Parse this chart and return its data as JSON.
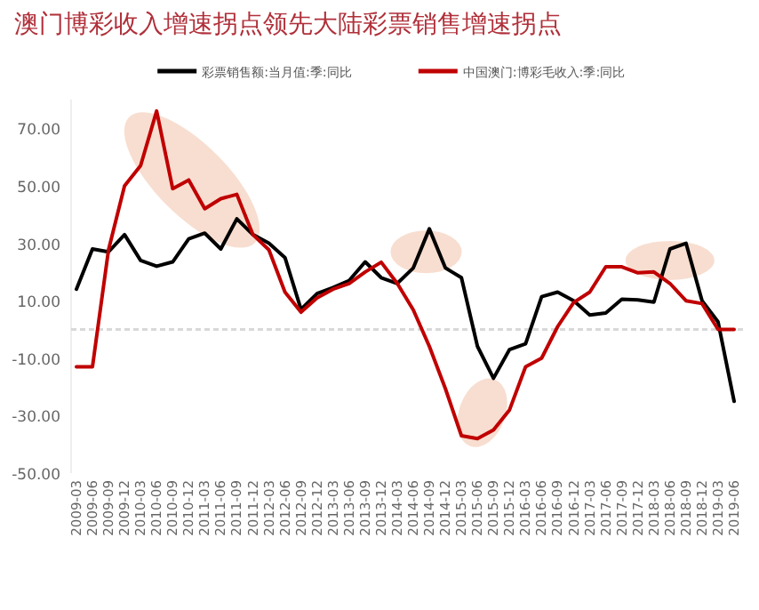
{
  "chart_data": {
    "type": "line",
    "title": "澳门博彩收入增速拐点领先大陆彩票销售增速拐点",
    "categories": [
      "2009-03",
      "2009-06",
      "2009-09",
      "2009-12",
      "2010-03",
      "2010-06",
      "2010-09",
      "2010-12",
      "2011-03",
      "2011-06",
      "2011-09",
      "2011-12",
      "2012-03",
      "2012-06",
      "2012-09",
      "2012-12",
      "2013-03",
      "2013-06",
      "2013-09",
      "2013-12",
      "2014-03",
      "2014-06",
      "2014-09",
      "2014-12",
      "2015-03",
      "2015-06",
      "2015-09",
      "2015-12",
      "2016-03",
      "2016-06",
      "2016-09",
      "2016-12",
      "2017-03",
      "2017-06",
      "2017-09",
      "2017-12",
      "2018-03",
      "2018-06",
      "2018-09",
      "2018-12",
      "2019-03",
      "2019-06"
    ],
    "series": [
      {
        "name": "彩票销售额:当月值:季:同比",
        "color": "#000000",
        "values": [
          14,
          28,
          27,
          33,
          24,
          22,
          23.5,
          31.5,
          33.5,
          28,
          38.5,
          33,
          30,
          25,
          7,
          12.5,
          14.6,
          17,
          23.5,
          18,
          16,
          21.4,
          35,
          21.4,
          18,
          -5.9,
          -17,
          -7,
          -5,
          11.4,
          13,
          10,
          5,
          5.7,
          10.5,
          10.3,
          9.5,
          28,
          30,
          10,
          2.6,
          -25
        ]
      },
      {
        "name": "中国澳门:博彩毛收入:季:同比",
        "color": "#c00000",
        "values": [
          -13,
          -13,
          27.7,
          50,
          57,
          76,
          49,
          52,
          42,
          45.5,
          47,
          33,
          27.7,
          13,
          6,
          11,
          14,
          16,
          20,
          23.4,
          16,
          6.8,
          -5.9,
          -20.6,
          -37,
          -38,
          -35,
          -28,
          -13,
          -10,
          1,
          9.4,
          13,
          21.8,
          21.8,
          19.7,
          20,
          16,
          10,
          9,
          0,
          0
        ]
      }
    ],
    "ylim": [
      -50,
      80
    ],
    "yticks": [
      {
        "value": -50,
        "label": "-50.00"
      },
      {
        "value": -30,
        "label": "-30.00"
      },
      {
        "value": -10,
        "label": "-10.00"
      },
      {
        "value": 10,
        "label": "10.00"
      },
      {
        "value": 30,
        "label": "30.00"
      },
      {
        "value": 50,
        "label": "50.00"
      },
      {
        "value": 70,
        "label": "70.00"
      }
    ],
    "ref_lines": [
      {
        "axis": "y",
        "value": 0,
        "color": "#d8d8d8",
        "line_style": "dashed"
      }
    ],
    "legend": "top",
    "grid": false,
    "marker": "none",
    "line_style": "solid"
  }
}
